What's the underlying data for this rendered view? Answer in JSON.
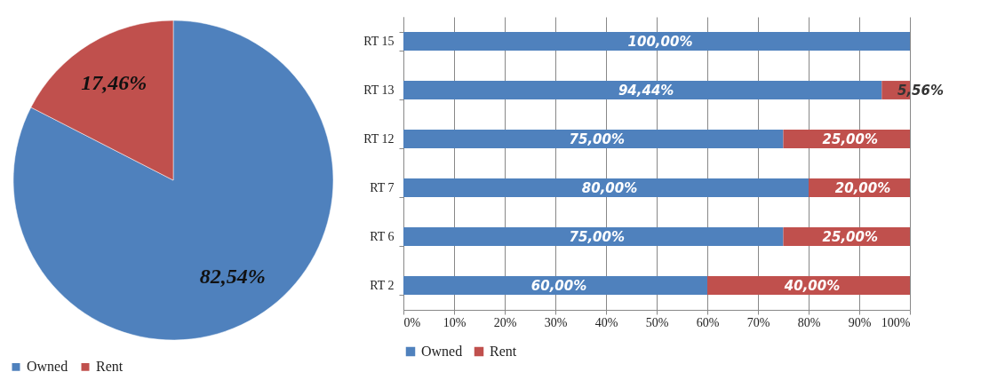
{
  "chart_data": [
    {
      "type": "pie",
      "categories": [
        "Owned",
        "Rent"
      ],
      "values": [
        82.54,
        17.46
      ],
      "colors": [
        "#4f81bd",
        "#c0504d"
      ],
      "value_labels": [
        "82,54%",
        "17,46%"
      ],
      "legend": "bottom"
    },
    {
      "type": "bar",
      "orientation": "horizontal",
      "stacked": true,
      "categories": [
        "RT 15",
        "RT 13",
        "RT 12",
        "RT 7",
        "RT 6",
        "RT 2"
      ],
      "series": [
        {
          "name": "Owned",
          "color": "#4f81bd",
          "values": [
            100,
            94.44,
            75,
            80,
            75,
            60
          ],
          "value_labels": [
            "100,00%",
            "94,44%",
            "75,00%",
            "80,00%",
            "75,00%",
            "60,00%"
          ]
        },
        {
          "name": "Rent",
          "color": "#c0504d",
          "values": [
            0,
            5.56,
            25,
            20,
            25,
            40
          ],
          "value_labels": [
            null,
            "5,56%",
            "25,00%",
            "20,00%",
            "25,00%",
            "40,00%"
          ]
        }
      ],
      "xlim": [
        0,
        100
      ],
      "xticks": [
        {
          "value": 0,
          "label": "0%"
        },
        {
          "value": 10,
          "label": "10%"
        },
        {
          "value": 20,
          "label": "20%"
        },
        {
          "value": 30,
          "label": "30%"
        },
        {
          "value": 40,
          "label": "40%"
        },
        {
          "value": 50,
          "label": "50%"
        },
        {
          "value": 60,
          "label": "60%"
        },
        {
          "value": 70,
          "label": "70%"
        },
        {
          "value": 80,
          "label": "80%"
        },
        {
          "value": 90,
          "label": "90%"
        },
        {
          "value": 100,
          "label": "100%"
        }
      ],
      "grid": "x",
      "legend": "bottom"
    }
  ]
}
